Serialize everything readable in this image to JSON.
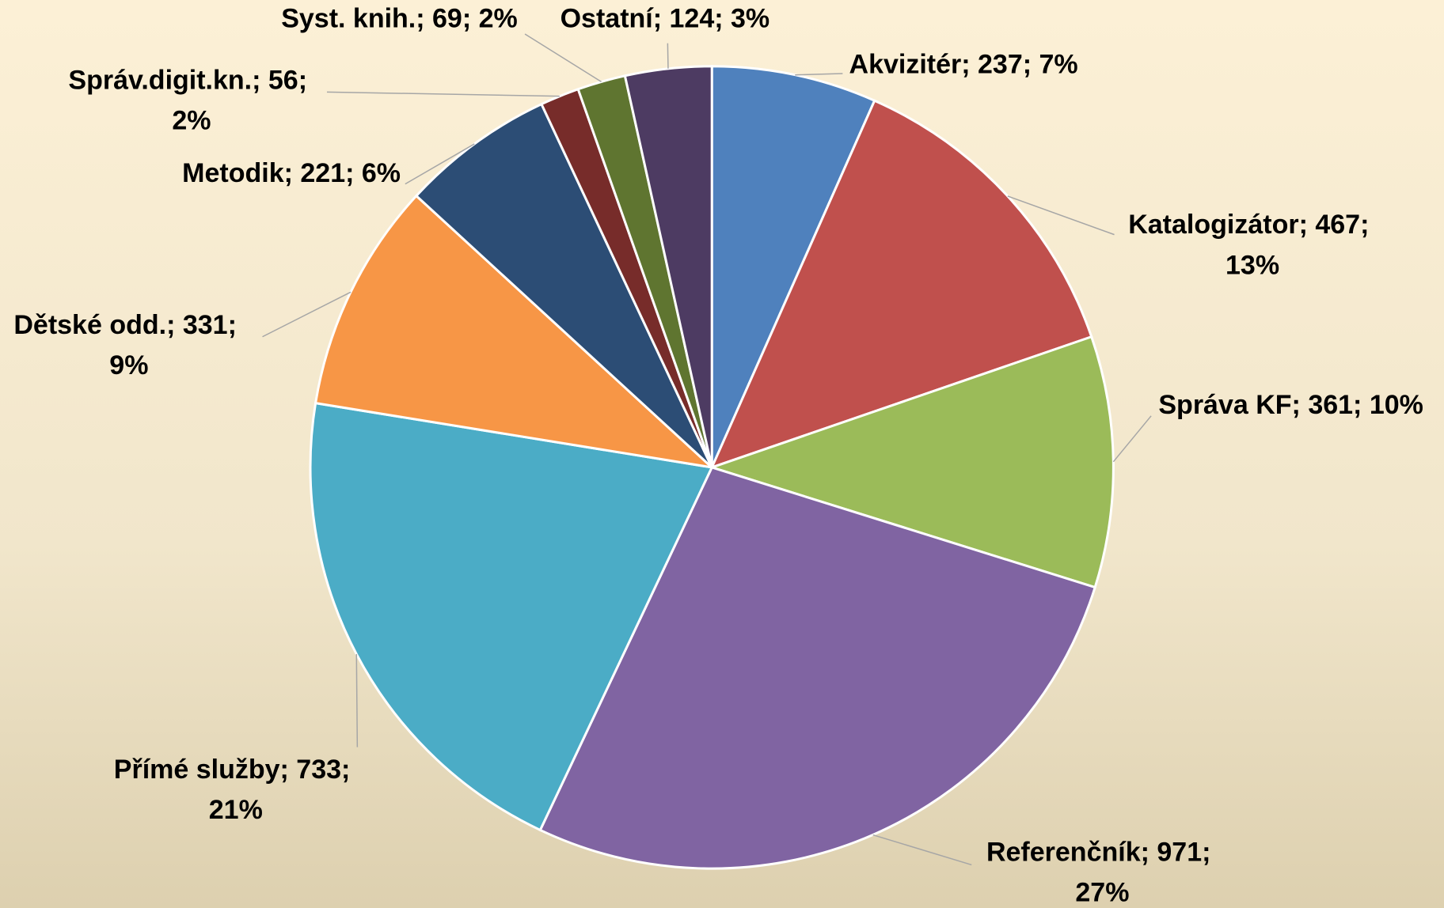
{
  "chart_data": {
    "type": "pie",
    "values": [
      237,
      467,
      361,
      971,
      733,
      331,
      221,
      56,
      69,
      124
    ],
    "value_labels": [
      "Akvizitér; 237; 7%",
      "Katalogizátor; 467; 13%",
      "Správa KF; 361; 10%",
      "Referenčník; 971; 27%",
      "Přímé služby; 733; 21%",
      "Dětské odd.; 331; 9%",
      "Metodik; 221; 6%",
      "Správ.digit.kn.; 56; 2%",
      "Syst. knih.; 69; 2%",
      "Ostatní; 124; 3%"
    ],
    "colors": [
      "#4f81bd",
      "#c0504d",
      "#9bbb59",
      "#8064a2",
      "#4bacc6",
      "#f79646",
      "#2c4d75",
      "#772c2a",
      "#5f7530",
      "#4d3b62"
    ]
  }
}
